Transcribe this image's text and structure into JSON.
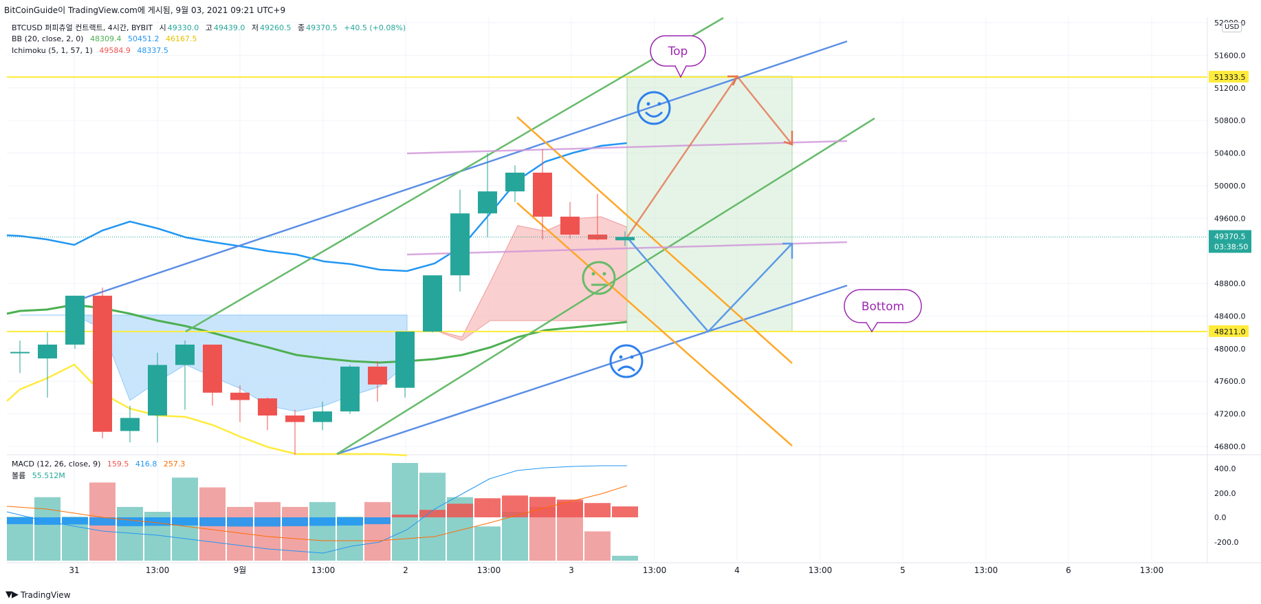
{
  "header": {
    "publish_line": "BitCoinGuide이 TradingView.com에 게시됨, 9월 03, 2021 09:21 UTC+9"
  },
  "legend": {
    "symbol_line": {
      "name": "BTCUSD 퍼피츄얼 컨트랙트, 4시간, BYBIT",
      "open_label": "시",
      "open": "49330.0",
      "high_label": "고",
      "high": "49439.0",
      "low_label": "저",
      "low": "49260.5",
      "close_label": "종",
      "close": "49370.5",
      "change": "+40.5 (+0.08%)"
    },
    "bb": {
      "label": "BB (20, close, 2, 0)",
      "basis": "48309.4",
      "upper": "50451.2",
      "lower": "46167.5"
    },
    "ichimoku": {
      "label": "Ichimoku (5, 1, 57, 1)",
      "a": "49584.9",
      "b": "48337.5"
    },
    "macd": {
      "label": "MACD (12, 26, close, 9)",
      "hist": "159.5",
      "macd": "416.8",
      "signal": "257.3"
    },
    "volume": {
      "label": "볼륨",
      "value": "55.512M"
    }
  },
  "price_axis": {
    "currency": "USD",
    "ticks": [
      "52000.0",
      "51600.0",
      "51200.0",
      "50800.0",
      "50400.0",
      "50000.0",
      "49600.0",
      "48800.0",
      "48400.0",
      "48000.0",
      "47600.0",
      "47200.0",
      "46800.0"
    ],
    "labels": {
      "top_line": "51333.5",
      "last_price": "49370.5",
      "countdown": "03:38:50",
      "bottom_line": "48211.0"
    }
  },
  "macd_axis": {
    "ticks": [
      "400.0",
      "200.0",
      "0.0",
      "-200.0"
    ]
  },
  "time_axis": {
    "ticks": [
      "31",
      "13:00",
      "9월",
      "13:00",
      "2",
      "13:00",
      "3",
      "13:00",
      "4",
      "13:00",
      "5",
      "13:00",
      "6",
      "13:00"
    ]
  },
  "annotations": {
    "top": "Top",
    "bottom": "Bottom"
  },
  "colors": {
    "up": "#26a69a",
    "down": "#ef5350",
    "upper_band": "#2196f3",
    "basis": "#4caf50",
    "lower_band": "#ffeb3b",
    "level_line": "#ffeb3b",
    "channel_blue": "#5b8fe6",
    "channel_green": "#66bb6a",
    "channel_orange": "#ffa726",
    "callout": "#9c27b0"
  },
  "footer": {
    "brand": "TradingView"
  },
  "chart_data": {
    "type": "candlestick",
    "timeframe": "4h",
    "candles": [
      {
        "o": 47950,
        "h": 48100,
        "l": 47700,
        "c": 47960
      },
      {
        "o": 47880,
        "h": 48200,
        "l": 47400,
        "c": 48050
      },
      {
        "o": 48050,
        "h": 48650,
        "l": 48000,
        "c": 48650
      },
      {
        "o": 48650,
        "h": 48750,
        "l": 46900,
        "c": 46980
      },
      {
        "o": 46990,
        "h": 47300,
        "l": 46850,
        "c": 47150
      },
      {
        "o": 47180,
        "h": 47950,
        "l": 46850,
        "c": 47800
      },
      {
        "o": 47800,
        "h": 48100,
        "l": 47250,
        "c": 48050
      },
      {
        "o": 48050,
        "h": 48050,
        "l": 47300,
        "c": 47460
      },
      {
        "o": 47460,
        "h": 47550,
        "l": 47100,
        "c": 47370
      },
      {
        "o": 47390,
        "h": 47400,
        "l": 47000,
        "c": 47180
      },
      {
        "o": 47180,
        "h": 47250,
        "l": 46700,
        "c": 47100
      },
      {
        "o": 47100,
        "h": 47350,
        "l": 47000,
        "c": 47230
      },
      {
        "o": 47230,
        "h": 47800,
        "l": 47200,
        "c": 47780
      },
      {
        "o": 47780,
        "h": 47850,
        "l": 47350,
        "c": 47560
      },
      {
        "o": 47520,
        "h": 48200,
        "l": 47400,
        "c": 48210
      },
      {
        "o": 48210,
        "h": 48900,
        "l": 48200,
        "c": 48900
      },
      {
        "o": 48900,
        "h": 49950,
        "l": 48700,
        "c": 49660
      },
      {
        "o": 49660,
        "h": 50400,
        "l": 49370,
        "c": 49930
      },
      {
        "o": 49930,
        "h": 50250,
        "l": 49800,
        "c": 50160
      },
      {
        "o": 50160,
        "h": 50450,
        "l": 49340,
        "c": 49620
      },
      {
        "o": 49620,
        "h": 49800,
        "l": 49350,
        "c": 49400
      },
      {
        "o": 49400,
        "h": 49900,
        "l": 49330,
        "c": 49340
      },
      {
        "o": 49330,
        "h": 49439,
        "l": 49260.5,
        "c": 49370.5
      }
    ],
    "levels": [
      51333.5,
      48211.0
    ],
    "macd": {
      "histogram": [
        -100,
        -110,
        -105,
        -120,
        -130,
        -125,
        -120,
        -130,
        -135,
        -135,
        -130,
        -125,
        -120,
        -100,
        40,
        110,
        200,
        280,
        320,
        300,
        260,
        210,
        160
      ],
      "volume_relative": [
        0.45,
        0.65,
        0.45,
        0.8,
        0.55,
        0.5,
        0.85,
        0.75,
        0.55,
        0.6,
        0.55,
        0.6,
        0.45,
        0.6,
        1.0,
        0.9,
        0.65,
        0.35,
        0.5,
        0.55,
        0.6,
        0.3,
        0.05
      ]
    }
  }
}
